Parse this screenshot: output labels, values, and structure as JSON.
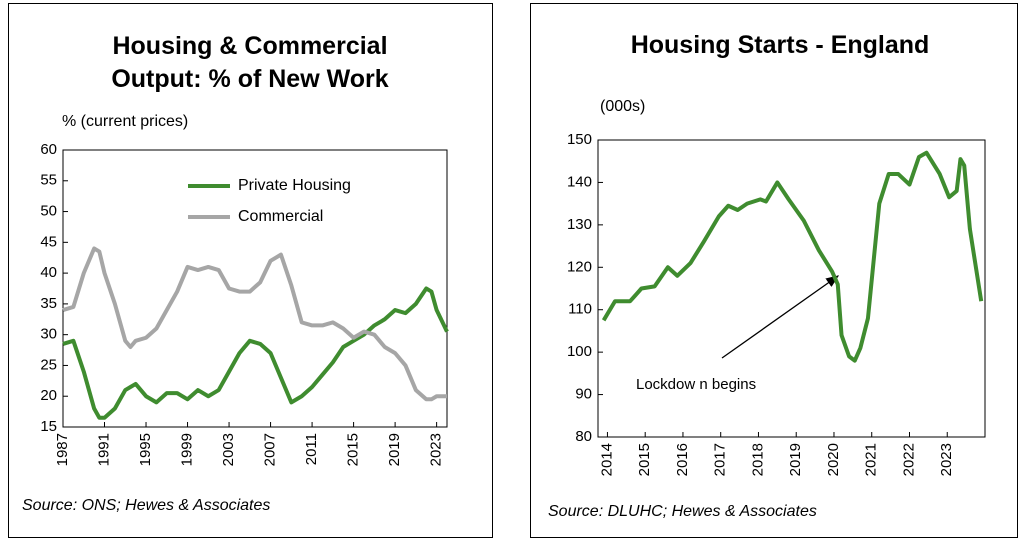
{
  "chart_data": [
    {
      "type": "line",
      "title": "Housing & Commercial Output: % of New Work",
      "y_label": "% (current prices)",
      "source": "Source: ONS; Hewes & Associates",
      "x": [
        1987,
        1988,
        1989,
        1990,
        1990.5,
        1991,
        1992,
        1993,
        1993.5,
        1994,
        1995,
        1996,
        1997,
        1998,
        1999,
        2000,
        2001,
        2002,
        2003,
        2004,
        2005,
        2006,
        2007,
        2008,
        2009,
        2010,
        2011,
        2012,
        2013,
        2014,
        2015,
        2016,
        2017,
        2018,
        2019,
        2020,
        2021,
        2022,
        2022.5,
        2023,
        2024
      ],
      "series": [
        {
          "name": "Private Housing",
          "color": "#3f8c2f",
          "values": [
            28.5,
            29,
            24,
            18,
            16.5,
            16.5,
            18,
            21,
            21.5,
            22,
            20,
            19,
            20.5,
            20.5,
            19.5,
            21,
            20,
            21,
            24,
            27,
            29,
            28.5,
            27,
            23,
            19,
            20,
            21.5,
            23.5,
            25.5,
            28,
            29,
            30,
            31.5,
            32.5,
            34,
            33.5,
            35,
            37.5,
            37,
            34,
            30.5
          ]
        },
        {
          "name": "Commercial",
          "color": "#a6a6a6",
          "values": [
            34,
            34.5,
            40,
            44,
            43.5,
            40,
            35,
            29,
            28,
            29,
            29.5,
            31,
            34,
            37,
            41,
            40.5,
            41,
            40.5,
            37.5,
            37,
            37,
            38.5,
            42,
            43,
            38,
            32,
            31.5,
            31.5,
            32,
            31,
            29.5,
            30.5,
            30,
            28,
            27,
            25,
            21,
            19.5,
            19.5,
            20,
            20
          ]
        }
      ],
      "xlim": [
        1987,
        2024
      ],
      "xticks": [
        1987,
        1991,
        1995,
        1999,
        2003,
        2007,
        2011,
        2015,
        2019,
        2023
      ],
      "ylim": [
        15,
        60
      ],
      "yticks": [
        15,
        20,
        25,
        30,
        35,
        40,
        45,
        50,
        55,
        60
      ],
      "legend": true
    },
    {
      "type": "line",
      "title": "Housing Starts - England",
      "y_label": "(000s)",
      "source": "Source: DLUHC; Hewes & Associates",
      "annotation": "Lockdow n begins",
      "x": [
        2013.9,
        2014.2,
        2014.6,
        2014.9,
        2015.25,
        2015.6,
        2015.85,
        2016.2,
        2016.55,
        2016.95,
        2017.2,
        2017.45,
        2017.7,
        2018.05,
        2018.2,
        2018.5,
        2018.8,
        2019.2,
        2019.6,
        2019.95,
        2020.1,
        2020.2,
        2020.4,
        2020.55,
        2020.7,
        2020.9,
        2021.2,
        2021.45,
        2021.7,
        2022.0,
        2022.25,
        2022.45,
        2022.8,
        2023.05,
        2023.25,
        2023.35,
        2023.45,
        2023.6,
        2023.9
      ],
      "series": [
        {
          "color": "#3f8c2f",
          "values": [
            107.5,
            112,
            112,
            115,
            115.5,
            120,
            118,
            121,
            126,
            132,
            134.5,
            133.5,
            135,
            136,
            135.5,
            140,
            136,
            131,
            124,
            119,
            116,
            104,
            99,
            98,
            101,
            108,
            135,
            142,
            142,
            139.5,
            146,
            147,
            142,
            136.5,
            138,
            145.5,
            144,
            129,
            112
          ]
        }
      ],
      "xlim": [
        2013.75,
        2024
      ],
      "xticks": [
        2014,
        2015,
        2016,
        2017,
        2018,
        2019,
        2020,
        2021,
        2022,
        2023
      ],
      "ylim": [
        80,
        150
      ],
      "yticks": [
        80,
        90,
        100,
        110,
        120,
        130,
        140,
        150
      ],
      "legend": false
    }
  ]
}
